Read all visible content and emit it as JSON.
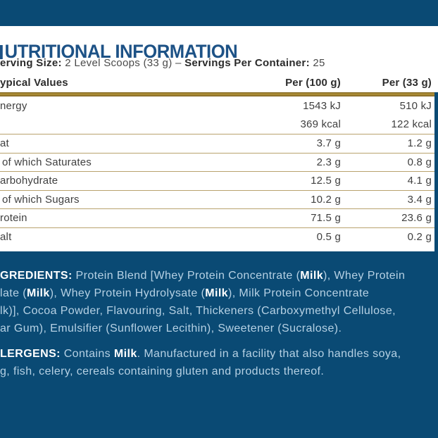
{
  "colors": {
    "navy": "#0a4a74",
    "heading": "#1d5286",
    "gold": "#b29238",
    "line": "#b9a26e",
    "panel_text": "#b6d1e4"
  },
  "title": {
    "visible_text": "UTRITIONAL INFORMATION"
  },
  "serving_line": {
    "segments": [
      {
        "t": "erving Size:",
        "b": true
      },
      {
        "t": " 2 Level Scoops (33 g)",
        "b": false
      },
      {
        "t": "  –  ",
        "b": false
      },
      {
        "t": "Servings Per Container:",
        "b": true
      },
      {
        "t": " 25",
        "b": false
      }
    ]
  },
  "table": {
    "header": {
      "label": "ypical Values",
      "col1": "Per (100 g)",
      "col2": "Per (33 g)"
    },
    "rows": [
      {
        "label": "nergy",
        "v1": "1543 kJ",
        "v2": "510 kJ"
      },
      {
        "label": "",
        "v1": "369 kcal",
        "v2": "122 kcal"
      },
      {
        "label": "at",
        "v1": "3.7 g",
        "v2": "1.2 g"
      },
      {
        "label": "of which Saturates",
        "v1": "2.3 g",
        "v2": "0.8 g"
      },
      {
        "label": "arbohydrate",
        "v1": "12.5 g",
        "v2": "4.1 g"
      },
      {
        "label": "of which Sugars",
        "v1": "10.2 g",
        "v2": "3.4 g"
      },
      {
        "label": "rotein",
        "v1": "71.5 g",
        "v2": "23.6 g"
      },
      {
        "label": "alt",
        "v1": "0.5 g",
        "v2": "0.2 g"
      }
    ]
  },
  "ingredients": {
    "lines": [
      [
        {
          "t": "GREDIENTS:",
          "b": true
        },
        {
          "t": " Protein Blend [Whey Protein Concentrate (",
          "b": false
        },
        {
          "t": "Milk",
          "b": true
        },
        {
          "t": "), Whey Protein",
          "b": false
        }
      ],
      [
        {
          "t": "late (",
          "b": false
        },
        {
          "t": "Milk",
          "b": true
        },
        {
          "t": "), Whey Protein Hydrolysate (",
          "b": false
        },
        {
          "t": "Milk",
          "b": true
        },
        {
          "t": "), Milk Protein Concentrate",
          "b": false
        }
      ],
      [
        {
          "t": "lk)], Cocoa Powder, Flavouring, Salt, Thickeners (Carboxymethyl Cellulose,",
          "b": false
        }
      ],
      [
        {
          "t": "ar Gum), Emulsifier (Sunflower Lecithin), Sweetener (Sucralose).",
          "b": false
        }
      ]
    ]
  },
  "allergens": {
    "lines": [
      [
        {
          "t": "LERGENS:",
          "b": true
        },
        {
          "t": " Contains ",
          "b": false
        },
        {
          "t": "Milk",
          "b": true
        },
        {
          "t": ". Manufactured in a facility that also handles soya,",
          "b": false
        }
      ],
      [
        {
          "t": "g, fish, celery, cereals containing gluten and products thereof.",
          "b": false
        }
      ]
    ]
  }
}
